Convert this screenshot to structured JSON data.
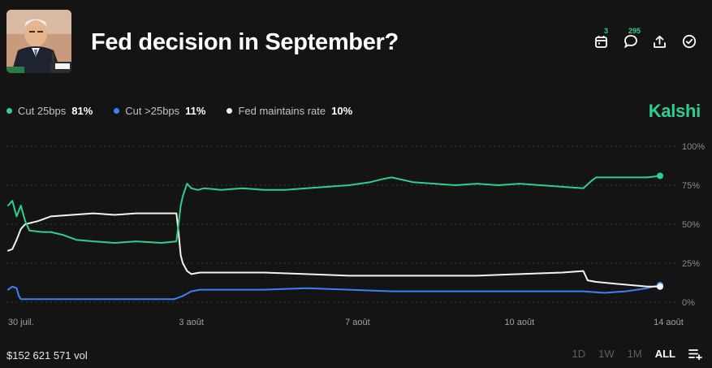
{
  "market": {
    "title": "Fed decision in September?"
  },
  "actions": [
    {
      "name": "calendar-icon",
      "badge": "3"
    },
    {
      "name": "comments-icon",
      "badge": "295"
    },
    {
      "name": "share-icon",
      "badge": ""
    },
    {
      "name": "check-circle-icon",
      "badge": ""
    }
  ],
  "brand": "Kalshi",
  "legend": [
    {
      "label": "Cut 25bps",
      "pct": "81%",
      "color": "#2ecf8e"
    },
    {
      "label": "Cut >25bps",
      "pct": "11%",
      "color": "#3b82f6"
    },
    {
      "label": "Fed maintains rate",
      "pct": "10%",
      "color": "#f2f2f2"
    }
  ],
  "footer": {
    "volume": "$152 621 571 vol",
    "ranges": [
      {
        "label": "1D",
        "active": false
      },
      {
        "label": "1W",
        "active": false
      },
      {
        "label": "1M",
        "active": false
      },
      {
        "label": "ALL",
        "active": true
      }
    ]
  },
  "chart_data": {
    "type": "line",
    "title": "Fed decision in September?",
    "xlabel": "",
    "ylabel": "",
    "x_range": [
      0,
      15.3
    ],
    "ylim": [
      0,
      100
    ],
    "y_ticks": [
      0,
      25,
      50,
      75,
      100
    ],
    "y_tick_labels": [
      "0%",
      "25%",
      "50%",
      "75%",
      "100%"
    ],
    "x_ticks": [
      0.3,
      4.3,
      8.2,
      12.0,
      15.5
    ],
    "x_tick_labels": [
      "30 juil.",
      "3 août",
      "7 août",
      "10 août",
      "14 août"
    ],
    "grid": true,
    "series": [
      {
        "name": "Cut 25bps",
        "color": "#2ecf8e",
        "points": [
          [
            0,
            62
          ],
          [
            0.1,
            65
          ],
          [
            0.2,
            55
          ],
          [
            0.3,
            62
          ],
          [
            0.4,
            52
          ],
          [
            0.5,
            46
          ],
          [
            0.8,
            45
          ],
          [
            1.0,
            45
          ],
          [
            1.3,
            43
          ],
          [
            1.6,
            40
          ],
          [
            2.0,
            39
          ],
          [
            2.5,
            38
          ],
          [
            3.0,
            39
          ],
          [
            3.6,
            38
          ],
          [
            3.95,
            39
          ],
          [
            4.0,
            50
          ],
          [
            4.05,
            62
          ],
          [
            4.1,
            68
          ],
          [
            4.2,
            76
          ],
          [
            4.3,
            73
          ],
          [
            4.45,
            72
          ],
          [
            4.6,
            73
          ],
          [
            5.0,
            72
          ],
          [
            5.5,
            73
          ],
          [
            6.0,
            72
          ],
          [
            6.5,
            72
          ],
          [
            7.0,
            73
          ],
          [
            7.5,
            74
          ],
          [
            8.0,
            75
          ],
          [
            8.5,
            77
          ],
          [
            8.8,
            79
          ],
          [
            9.0,
            80
          ],
          [
            9.5,
            77
          ],
          [
            10.0,
            76
          ],
          [
            10.5,
            75
          ],
          [
            11.0,
            76
          ],
          [
            11.5,
            75
          ],
          [
            12.0,
            76
          ],
          [
            12.5,
            75
          ],
          [
            13.0,
            74
          ],
          [
            13.5,
            73
          ],
          [
            13.7,
            78
          ],
          [
            13.8,
            80
          ],
          [
            14.5,
            80
          ],
          [
            15.0,
            80
          ],
          [
            15.3,
            81
          ]
        ]
      },
      {
        "name": "Cut >25bps",
        "color": "#3b82f6",
        "points": [
          [
            0,
            8
          ],
          [
            0.1,
            10
          ],
          [
            0.2,
            9
          ],
          [
            0.25,
            4
          ],
          [
            0.3,
            2
          ],
          [
            1.0,
            2
          ],
          [
            2.0,
            2
          ],
          [
            3.0,
            2
          ],
          [
            3.9,
            2
          ],
          [
            4.1,
            4
          ],
          [
            4.3,
            7
          ],
          [
            4.5,
            8
          ],
          [
            5.0,
            8
          ],
          [
            6.0,
            8
          ],
          [
            7.0,
            9
          ],
          [
            8.0,
            8
          ],
          [
            9.0,
            7
          ],
          [
            10.0,
            7
          ],
          [
            11.0,
            7
          ],
          [
            12.0,
            7
          ],
          [
            13.0,
            7
          ],
          [
            13.5,
            7
          ],
          [
            14.0,
            6
          ],
          [
            14.5,
            7
          ],
          [
            15.0,
            9
          ],
          [
            15.3,
            11
          ]
        ]
      },
      {
        "name": "Fed maintains rate",
        "color": "#f2f2f2",
        "points": [
          [
            0,
            33
          ],
          [
            0.1,
            34
          ],
          [
            0.2,
            40
          ],
          [
            0.3,
            47
          ],
          [
            0.4,
            50
          ],
          [
            0.7,
            52
          ],
          [
            1.0,
            55
          ],
          [
            1.5,
            56
          ],
          [
            2.0,
            57
          ],
          [
            2.5,
            56
          ],
          [
            3.0,
            57
          ],
          [
            3.5,
            57
          ],
          [
            3.95,
            57
          ],
          [
            4.0,
            45
          ],
          [
            4.05,
            30
          ],
          [
            4.1,
            25
          ],
          [
            4.2,
            20
          ],
          [
            4.3,
            18
          ],
          [
            4.5,
            19
          ],
          [
            5.0,
            19
          ],
          [
            6.0,
            19
          ],
          [
            7.0,
            18
          ],
          [
            8.0,
            17
          ],
          [
            9.0,
            17
          ],
          [
            10.0,
            17
          ],
          [
            11.0,
            17
          ],
          [
            12.0,
            18
          ],
          [
            13.0,
            19
          ],
          [
            13.5,
            20
          ],
          [
            13.6,
            14
          ],
          [
            13.8,
            13
          ],
          [
            14.2,
            12
          ],
          [
            14.6,
            11
          ],
          [
            15.0,
            10
          ],
          [
            15.3,
            10
          ]
        ]
      }
    ]
  }
}
